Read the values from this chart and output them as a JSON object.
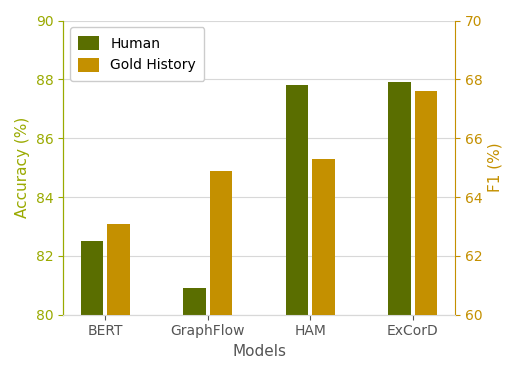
{
  "categories": [
    "BERT",
    "GraphFlow",
    "HAM",
    "ExCorD"
  ],
  "human_values": [
    82.5,
    80.9,
    87.8,
    87.9
  ],
  "gold_values": [
    63.1,
    64.9,
    65.3,
    67.6
  ],
  "human_color": "#5a6e00",
  "gold_color": "#c49000",
  "human_label": "Human",
  "gold_label": "Gold History",
  "xlabel": "Models",
  "ylabel_left": "Accuracy (%)",
  "ylabel_right": "F1 (%)",
  "ylim_left": [
    80,
    90
  ],
  "ylim_right": [
    60,
    70
  ],
  "yticks_left": [
    80,
    82,
    84,
    86,
    88,
    90
  ],
  "yticks_right": [
    60,
    62,
    64,
    66,
    68,
    70
  ],
  "bar_width": 0.22,
  "bar_gap": 0.04,
  "figsize": [
    5.18,
    3.74
  ],
  "dpi": 100,
  "axis_color_left": "#9aaa00",
  "tick_color_left": "#9aaa00",
  "axis_color_right": "#c49000",
  "tick_color_right": "#c49000",
  "grid_color": "#d8d8d8",
  "xlabel_color": "#555555",
  "xticklabel_color": "#555555"
}
